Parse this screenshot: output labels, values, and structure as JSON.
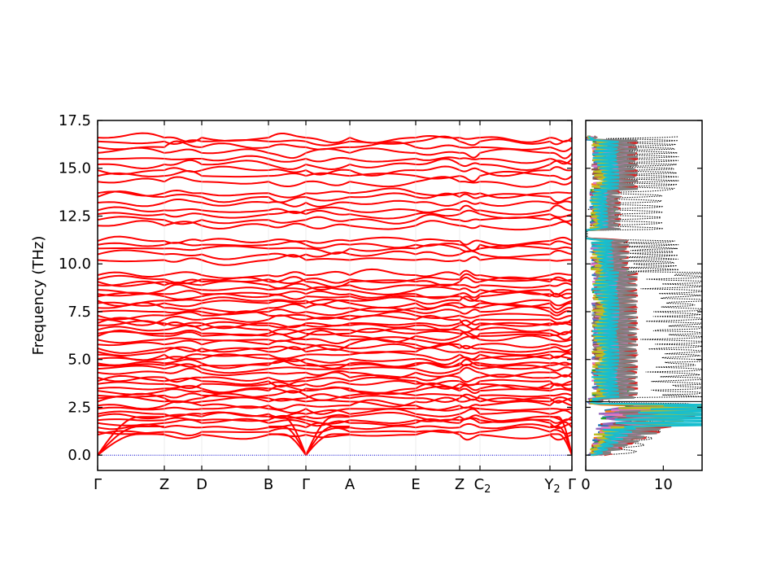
{
  "chart_data": [
    {
      "type": "line",
      "panel": "band-structure",
      "ylabel": "Frequency (THz)",
      "ylim": [
        -0.8,
        17.5
      ],
      "yticks": [
        "0.0",
        "2.5",
        "5.0",
        "7.5",
        "10.0",
        "12.5",
        "15.0",
        "17.5"
      ],
      "ytick_values": [
        0,
        2.5,
        5,
        7.5,
        10,
        12.5,
        15,
        17.5
      ],
      "xtick_labels": [
        "Γ",
        "Z",
        "D",
        "B",
        "Γ",
        "A",
        "E",
        "Z",
        "C",
        "Y",
        "Γ"
      ],
      "xtick_subscripts": [
        "",
        "",
        "",
        "",
        "",
        "",
        "",
        "",
        "2",
        "2",
        ""
      ],
      "band_color": "#ff0000",
      "zero_line_color": "#0000cc",
      "bands_description": {
        "acoustic_branches_start": 0.0,
        "dense_region": [
          1.0,
          9.5
        ],
        "gap_regions": [
          [
            2.8,
            3.2
          ],
          [
            11.3,
            11.8
          ],
          [
            13.9,
            14.3
          ]
        ],
        "groups": [
          [
            10.2,
            10.5,
            10.8,
            11.0,
            11.2
          ],
          [
            12.0,
            12.3,
            12.6,
            12.8
          ],
          [
            13.2,
            13.5,
            13.7
          ],
          [
            14.3,
            14.6,
            14.9,
            15.2,
            15.5,
            15.8,
            16.1,
            16.4,
            16.6
          ]
        ]
      }
    },
    {
      "type": "line",
      "panel": "density-of-states",
      "xticks": [
        "0",
        "10"
      ],
      "xtick_values": [
        0,
        10
      ],
      "xlim": [
        0,
        15
      ],
      "ylim": [
        -0.8,
        17.5
      ],
      "total_color": "#000000",
      "series_colors": [
        "#1f77b4",
        "#ff7f0e",
        "#2ca02c",
        "#d62728",
        "#9467bd",
        "#8c564b",
        "#e377c2",
        "#7f7f7f",
        "#bcbd22",
        "#17becf"
      ]
    }
  ]
}
